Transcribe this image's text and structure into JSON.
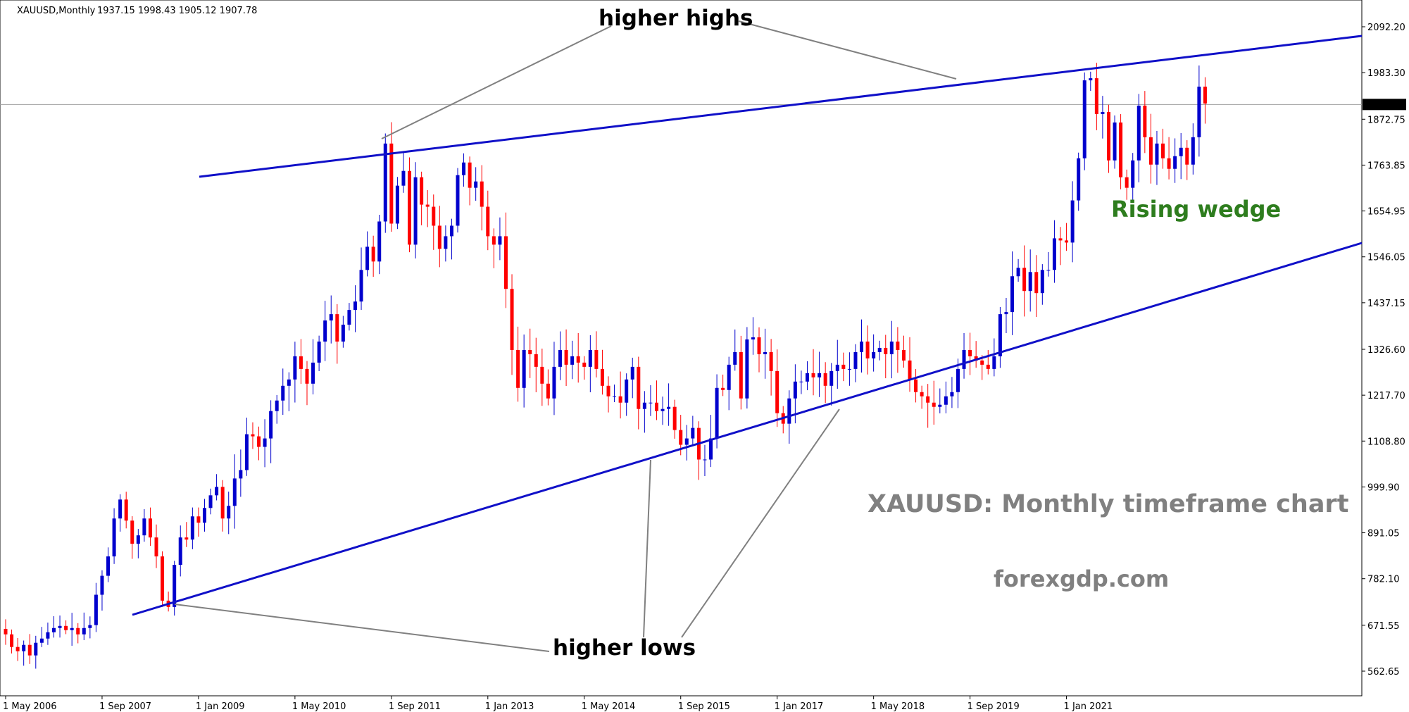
{
  "header": {
    "symbol": "XAUUSD,Monthly",
    "ohlc": "1937.15 1998.43 1905.12 1907.78"
  },
  "annotations": {
    "higher_highs": "higher highs",
    "higher_lows": "higher lows",
    "pattern": "Rising wedge",
    "subtitle": "XAUUSD: Monthly timeframe chart",
    "site": "forexgdp.com"
  },
  "colors": {
    "bull": "#0000cd",
    "bear": "#ff0000",
    "trendline": "#1010c8",
    "pointer": "#808080",
    "pattern_text": "#2e7d1e",
    "subtitle_text": "#808080",
    "current_price_line": "#a0a0a0"
  },
  "chart_data": {
    "type": "candlestick",
    "title": "XAUUSD: Monthly timeframe chart",
    "x_start": "2006-05",
    "ylim": [
      500,
      2150
    ],
    "y_ticks": [
      "2092.20",
      "1983.30",
      "1872.75",
      "1763.85",
      "1654.95",
      "1546.05",
      "1437.15",
      "1326.60",
      "1217.70",
      "1108.80",
      "999.90",
      "891.05",
      "782.10",
      "671.55",
      "562.65"
    ],
    "x_ticks": [
      {
        "date": "2006-05",
        "label": "1 May 2006"
      },
      {
        "date": "2007-09",
        "label": "1 Sep 2007"
      },
      {
        "date": "2009-01",
        "label": "1 Jan 2009"
      },
      {
        "date": "2010-05",
        "label": "1 May 2010"
      },
      {
        "date": "2011-09",
        "label": "1 Sep 2011"
      },
      {
        "date": "2013-01",
        "label": "1 Jan 2013"
      },
      {
        "date": "2014-05",
        "label": "1 May 2014"
      },
      {
        "date": "2015-09",
        "label": "1 Sep 2015"
      },
      {
        "date": "2017-01",
        "label": "1 Jan 2017"
      },
      {
        "date": "2018-05",
        "label": "1 May 2018"
      },
      {
        "date": "2019-09",
        "label": "1 Sep 2019"
      },
      {
        "date": "2021-01",
        "label": "1 Jan 2021"
      }
    ],
    "current_price": 1907.78,
    "current_price_label": "1907.78",
    "close": [
      650,
      620,
      610,
      625,
      600,
      630,
      640,
      655,
      665,
      670,
      660,
      665,
      650,
      665,
      672,
      744,
      789,
      835,
      925,
      970,
      920,
      865,
      885,
      925,
      880,
      835,
      730,
      715,
      815,
      880,
      875,
      930,
      915,
      950,
      980,
      1000,
      925,
      955,
      1020,
      1040,
      1125,
      1120,
      1095,
      1115,
      1180,
      1205,
      1240,
      1255,
      1310,
      1280,
      1245,
      1295,
      1345,
      1395,
      1410,
      1345,
      1385,
      1420,
      1440,
      1515,
      1570,
      1535,
      1630,
      1815,
      1625,
      1715,
      1750,
      1575,
      1735,
      1670,
      1665,
      1620,
      1565,
      1595,
      1620,
      1740,
      1770,
      1710,
      1725,
      1665,
      1595,
      1575,
      1595,
      1470,
      1325,
      1235,
      1325,
      1315,
      1285,
      1245,
      1210,
      1285,
      1325,
      1290,
      1310,
      1295,
      1285,
      1325,
      1280,
      1240,
      1215,
      1215,
      1200,
      1255,
      1285,
      1185,
      1200,
      1200,
      1180,
      1185,
      1190,
      1135,
      1100,
      1115,
      1140,
      1065,
      1065,
      1115,
      1235,
      1230,
      1290,
      1320,
      1210,
      1350,
      1355,
      1315,
      1320,
      1275,
      1175,
      1150,
      1210,
      1250,
      1250,
      1270,
      1260,
      1270,
      1240,
      1275,
      1290,
      1280,
      1280,
      1320,
      1345,
      1305,
      1320,
      1330,
      1315,
      1345,
      1325,
      1300,
      1255,
      1225,
      1215,
      1200,
      1190,
      1195,
      1215,
      1225,
      1280,
      1325,
      1310,
      1300,
      1290,
      1280,
      1310,
      1410,
      1415,
      1500,
      1520,
      1465,
      1510,
      1460,
      1515,
      1515,
      1590,
      1585,
      1580,
      1680,
      1780,
      1965,
      1970,
      1885,
      1890,
      1775,
      1865,
      1735,
      1710,
      1775,
      1905,
      1830,
      1765,
      1815,
      1780,
      1755,
      1785,
      1805,
      1765,
      1830,
      1950,
      1910
    ]
  }
}
